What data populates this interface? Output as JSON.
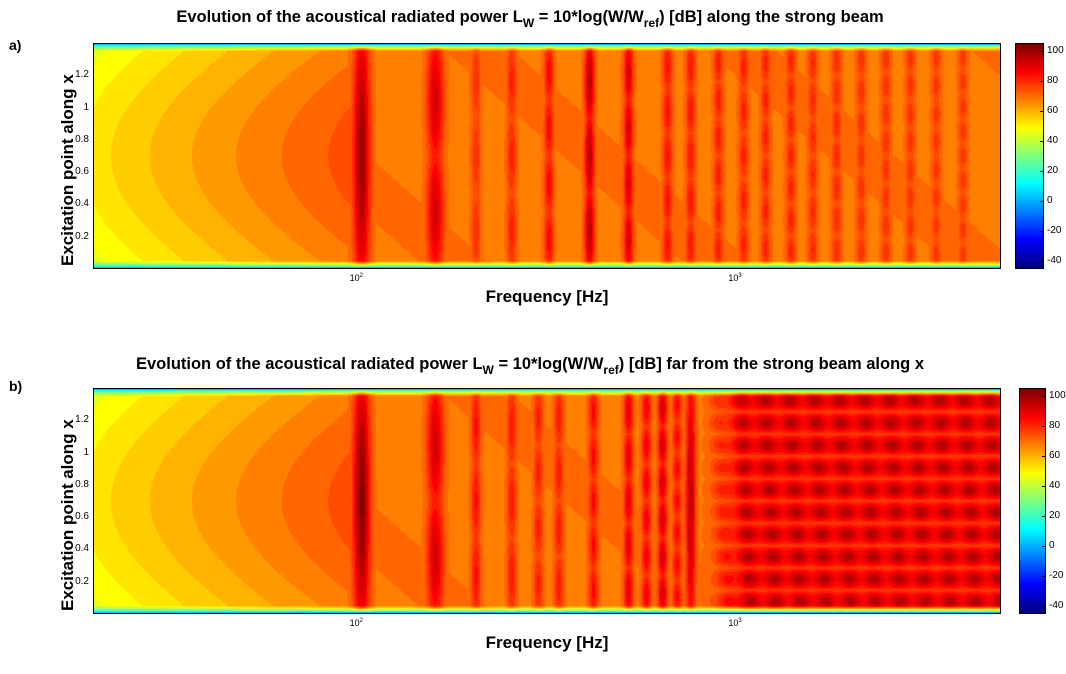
{
  "panels": [
    {
      "letter": "a)",
      "title_pre": "Evolution of the acoustical radiated power L",
      "title_sub1": "W",
      "title_mid": " = 10*log(W/W",
      "title_sub2": "ref",
      "title_post": ") [dB] along the strong beam",
      "xlabel": "Frequency [Hz]",
      "ylabel": "Excitation point along x",
      "yticks": [
        "0.2",
        "0.4",
        "0.6",
        "0.8",
        "1",
        "1.2"
      ],
      "xticks": [
        {
          "base": "10",
          "exp": "2"
        },
        {
          "base": "10",
          "exp": "3"
        }
      ],
      "cbar_ticks": [
        "100",
        "80",
        "60",
        "40",
        "20",
        "0",
        "-20",
        "-40"
      ]
    },
    {
      "letter": "b)",
      "title_pre": "Evolution of the acoustical radiated power L",
      "title_sub1": "W",
      "title_mid": " = 10*log(W/W",
      "title_sub2": "ref",
      "title_post": ") [dB] far from the strong beam along x",
      "xlabel": "Frequency [Hz]",
      "ylabel": "Excitation point along x",
      "yticks": [
        "0.2",
        "0.4",
        "0.6",
        "0.8",
        "1",
        "1.2"
      ],
      "xticks": [
        {
          "base": "10",
          "exp": "2"
        },
        {
          "base": "10",
          "exp": "3"
        }
      ],
      "cbar_ticks": [
        "100",
        "80",
        "60",
        "40",
        "20",
        "0",
        "-20",
        "-40"
      ]
    }
  ],
  "chart_data": [
    {
      "type": "heatmap",
      "title": "Evolution of the acoustical radiated power L_W = 10*log(W/W_ref) [dB] along the strong beam",
      "xlabel": "Frequency [Hz]",
      "ylabel": "Excitation point along x",
      "x_scale": "log",
      "xlim": [
        20,
        5000
      ],
      "ylim": [
        0,
        1.4
      ],
      "clim": [
        -45,
        105
      ],
      "colormap": "jet",
      "grid": false,
      "colorbar": "right",
      "resonance_frequencies_hz": [
        102,
        160,
        205,
        255,
        320,
        410,
        520,
        660,
        760,
        900,
        1050,
        1200,
        1400,
        1600,
        1850,
        2150,
        2500,
        2900,
        3400,
        4000
      ],
      "resonance_peak_db": [
        101,
        93,
        80,
        82,
        86,
        97,
        92,
        85,
        84,
        83,
        82,
        82,
        82,
        81,
        81,
        80,
        80,
        80,
        79,
        79
      ],
      "resonance_lobes_along_x": [
        1,
        2,
        3,
        3,
        4,
        3,
        4,
        5,
        5,
        6,
        5,
        6,
        7,
        6,
        7,
        7,
        8,
        8,
        8,
        9
      ],
      "low_freq_level_db": [
        45,
        60
      ],
      "edge_level_db": 0
    },
    {
      "type": "heatmap",
      "title": "Evolution of the acoustical radiated power L_W = 10*log(W/W_ref) [dB] far from the strong beam along x",
      "xlabel": "Frequency [Hz]",
      "ylabel": "Excitation point along x",
      "x_scale": "log",
      "xlim": [
        20,
        5000
      ],
      "ylim": [
        0,
        1.4
      ],
      "clim": [
        -45,
        105
      ],
      "colormap": "jet",
      "grid": false,
      "colorbar": "right",
      "resonance_frequencies_hz": [
        102,
        160,
        205,
        255,
        300,
        340,
        420,
        520,
        580,
        640,
        700,
        760
      ],
      "resonance_peak_db": [
        104,
        93,
        85,
        83,
        82,
        83,
        86,
        90,
        88,
        93,
        86,
        96
      ],
      "resonance_lobes_along_x": [
        1,
        2,
        3,
        3,
        4,
        4,
        5,
        5,
        6,
        6,
        7,
        1
      ],
      "dense_band_hz": [
        800,
        5000
      ],
      "dense_band_rows_along_x": 10,
      "dense_band_level_db": [
        78,
        98
      ],
      "low_freq_level_db": [
        45,
        60
      ],
      "edge_level_db": 0
    }
  ]
}
